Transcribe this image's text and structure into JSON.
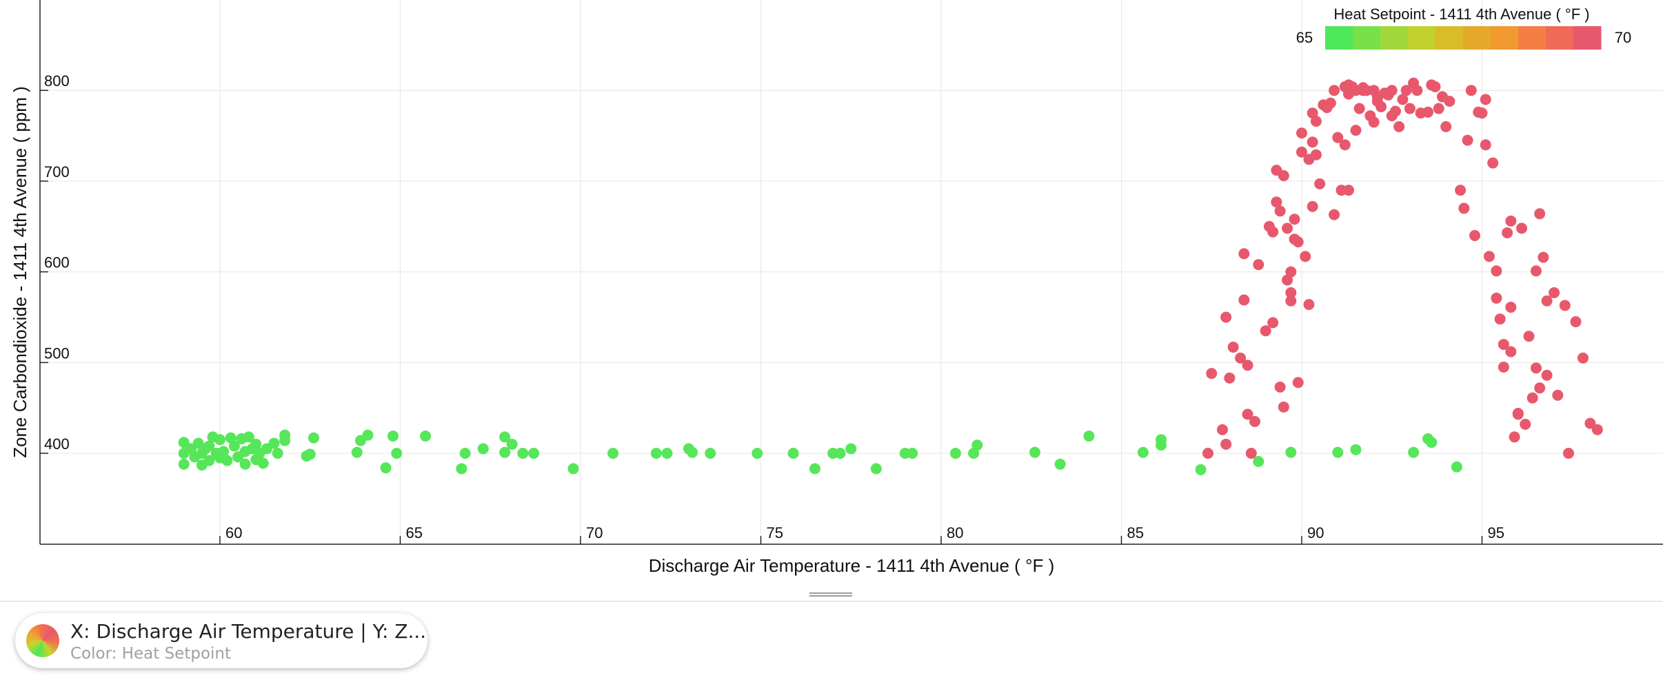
{
  "chart_data": {
    "type": "scatter",
    "title": "",
    "xlabel": "Discharge Air Temperature - 1411 4th Avenue ( °F )",
    "ylabel": "Zone Carbondioxide - 1411 4th Avenue ( ppm )",
    "xlim": [
      55,
      99
    ],
    "ylim": [
      300,
      900
    ],
    "xticks": [
      60,
      65,
      70,
      75,
      80,
      85,
      90,
      95
    ],
    "yticks": [
      400,
      500,
      600,
      700,
      800
    ],
    "grid": true,
    "color_scale": {
      "title": "Heat Setpoint - 1411 4th Avenue ( °F )",
      "min": 65,
      "max": 70,
      "min_label": "65",
      "max_label": "70",
      "placement": "top-right",
      "colors": [
        "#4ee85a",
        "#78e048",
        "#a0d83a",
        "#c2d030",
        "#dabb28",
        "#e6a82a",
        "#f09a30",
        "#f57e45",
        "#f06a58",
        "#e8586c"
      ]
    },
    "series": [
      {
        "setpoint": 65,
        "color": "#56e65a",
        "points": [
          [
            59.0,
            412
          ],
          [
            59.0,
            400
          ],
          [
            59.0,
            388
          ],
          [
            59.2,
            405
          ],
          [
            59.3,
            396
          ],
          [
            59.4,
            411
          ],
          [
            59.5,
            387
          ],
          [
            59.5,
            400
          ],
          [
            59.6,
            405
          ],
          [
            59.7,
            392
          ],
          [
            59.7,
            408
          ],
          [
            59.8,
            418
          ],
          [
            59.9,
            400
          ],
          [
            60.0,
            395
          ],
          [
            60.0,
            415
          ],
          [
            60.1,
            402
          ],
          [
            60.2,
            392
          ],
          [
            60.3,
            417
          ],
          [
            60.4,
            408
          ],
          [
            60.5,
            396
          ],
          [
            60.6,
            416
          ],
          [
            60.7,
            402
          ],
          [
            60.7,
            388
          ],
          [
            60.8,
            418
          ],
          [
            60.9,
            405
          ],
          [
            61.0,
            393
          ],
          [
            61.0,
            410
          ],
          [
            61.1,
            400
          ],
          [
            61.2,
            389
          ],
          [
            61.3,
            405
          ],
          [
            61.5,
            411
          ],
          [
            61.6,
            400
          ],
          [
            61.8,
            414
          ],
          [
            61.8,
            420
          ],
          [
            62.4,
            397
          ],
          [
            62.5,
            399
          ],
          [
            62.6,
            417
          ],
          [
            63.8,
            401
          ],
          [
            63.9,
            414
          ],
          [
            64.1,
            420
          ],
          [
            64.6,
            384
          ],
          [
            64.8,
            419
          ],
          [
            64.9,
            400
          ],
          [
            65.7,
            419
          ],
          [
            66.7,
            383
          ],
          [
            66.8,
            400
          ],
          [
            67.3,
            405
          ],
          [
            67.9,
            418
          ],
          [
            67.9,
            401
          ],
          [
            68.1,
            410
          ],
          [
            68.4,
            400
          ],
          [
            68.7,
            400
          ],
          [
            69.8,
            383
          ],
          [
            70.9,
            400
          ],
          [
            72.1,
            400
          ],
          [
            72.4,
            400
          ],
          [
            73.0,
            405
          ],
          [
            73.1,
            401
          ],
          [
            73.6,
            400
          ],
          [
            74.9,
            400
          ],
          [
            75.9,
            400
          ],
          [
            76.5,
            383
          ],
          [
            77.0,
            400
          ],
          [
            77.2,
            400
          ],
          [
            77.5,
            405
          ],
          [
            78.2,
            383
          ],
          [
            79.0,
            400
          ],
          [
            79.2,
            400
          ],
          [
            80.4,
            400
          ],
          [
            80.9,
            400
          ],
          [
            81.0,
            409
          ],
          [
            82.6,
            401
          ],
          [
            83.3,
            388
          ],
          [
            84.1,
            419
          ],
          [
            85.6,
            401
          ],
          [
            86.1,
            409
          ],
          [
            86.1,
            415
          ],
          [
            87.2,
            382
          ],
          [
            88.8,
            391
          ],
          [
            89.7,
            401
          ],
          [
            91.0,
            401
          ],
          [
            91.5,
            404
          ],
          [
            93.1,
            401
          ],
          [
            93.5,
            416
          ],
          [
            93.6,
            412
          ],
          [
            94.3,
            385
          ]
        ]
      },
      {
        "setpoint": 70,
        "color": "#e8586c",
        "points": [
          [
            87.4,
            400
          ],
          [
            87.5,
            488
          ],
          [
            87.8,
            426
          ],
          [
            87.9,
            410
          ],
          [
            87.9,
            550
          ],
          [
            88.0,
            483
          ],
          [
            88.1,
            517
          ],
          [
            88.3,
            505
          ],
          [
            88.4,
            569
          ],
          [
            88.4,
            620
          ],
          [
            88.5,
            497
          ],
          [
            88.5,
            443
          ],
          [
            88.6,
            400
          ],
          [
            88.7,
            435
          ],
          [
            88.8,
            608
          ],
          [
            89.0,
            535
          ],
          [
            89.1,
            650
          ],
          [
            89.2,
            644
          ],
          [
            89.2,
            544
          ],
          [
            89.3,
            677
          ],
          [
            89.3,
            712
          ],
          [
            89.4,
            473
          ],
          [
            89.4,
            667
          ],
          [
            89.5,
            706
          ],
          [
            89.5,
            451
          ],
          [
            89.6,
            591
          ],
          [
            89.6,
            648
          ],
          [
            89.7,
            577
          ],
          [
            89.7,
            568
          ],
          [
            89.7,
            600
          ],
          [
            89.8,
            636
          ],
          [
            89.8,
            658
          ],
          [
            89.9,
            633
          ],
          [
            89.9,
            478
          ],
          [
            90.0,
            753
          ],
          [
            90.0,
            732
          ],
          [
            90.1,
            617
          ],
          [
            90.2,
            564
          ],
          [
            90.2,
            724
          ],
          [
            90.3,
            672
          ],
          [
            90.3,
            743
          ],
          [
            90.3,
            775
          ],
          [
            90.4,
            729
          ],
          [
            90.4,
            766
          ],
          [
            90.5,
            697
          ],
          [
            90.6,
            784
          ],
          [
            90.7,
            781
          ],
          [
            90.8,
            786
          ],
          [
            90.9,
            800
          ],
          [
            90.9,
            663
          ],
          [
            91.0,
            748
          ],
          [
            91.1,
            690
          ],
          [
            91.2,
            804
          ],
          [
            91.2,
            740
          ],
          [
            91.3,
            796
          ],
          [
            91.3,
            806
          ],
          [
            91.3,
            690
          ],
          [
            91.4,
            804
          ],
          [
            91.5,
            756
          ],
          [
            91.5,
            800
          ],
          [
            91.6,
            780
          ],
          [
            91.7,
            803
          ],
          [
            91.7,
            800
          ],
          [
            91.8,
            800
          ],
          [
            91.9,
            772
          ],
          [
            92.0,
            765
          ],
          [
            92.0,
            800
          ],
          [
            92.1,
            793
          ],
          [
            92.1,
            788
          ],
          [
            92.2,
            782
          ],
          [
            92.3,
            797
          ],
          [
            92.4,
            795
          ],
          [
            92.5,
            800
          ],
          [
            92.5,
            772
          ],
          [
            92.6,
            777
          ],
          [
            92.7,
            760
          ],
          [
            92.8,
            790
          ],
          [
            92.9,
            800
          ],
          [
            93.0,
            780
          ],
          [
            93.1,
            808
          ],
          [
            93.2,
            800
          ],
          [
            93.3,
            775
          ],
          [
            93.5,
            776
          ],
          [
            93.6,
            806
          ],
          [
            93.7,
            804
          ],
          [
            93.8,
            780
          ],
          [
            93.9,
            793
          ],
          [
            94.0,
            760
          ],
          [
            94.1,
            788
          ],
          [
            94.4,
            690
          ],
          [
            94.5,
            670
          ],
          [
            94.6,
            745
          ],
          [
            94.7,
            800
          ],
          [
            94.8,
            640
          ],
          [
            94.9,
            776
          ],
          [
            95.0,
            775
          ],
          [
            95.1,
            790
          ],
          [
            95.1,
            740
          ],
          [
            95.2,
            617
          ],
          [
            95.3,
            720
          ],
          [
            95.4,
            601
          ],
          [
            95.4,
            571
          ],
          [
            95.5,
            548
          ],
          [
            95.6,
            520
          ],
          [
            95.6,
            495
          ],
          [
            95.7,
            643
          ],
          [
            95.8,
            656
          ],
          [
            95.8,
            561
          ],
          [
            95.8,
            512
          ],
          [
            95.9,
            418
          ],
          [
            96.0,
            444
          ],
          [
            96.0,
            443
          ],
          [
            96.1,
            648
          ],
          [
            96.2,
            432
          ],
          [
            96.3,
            529
          ],
          [
            96.4,
            461
          ],
          [
            96.5,
            601
          ],
          [
            96.5,
            494
          ],
          [
            96.6,
            664
          ],
          [
            96.6,
            472
          ],
          [
            96.7,
            616
          ],
          [
            96.8,
            486
          ],
          [
            96.8,
            568
          ],
          [
            97.0,
            577
          ],
          [
            97.1,
            464
          ],
          [
            97.3,
            563
          ],
          [
            97.4,
            400
          ],
          [
            97.6,
            545
          ],
          [
            97.8,
            505
          ],
          [
            98.0,
            433
          ],
          [
            98.2,
            426
          ]
        ]
      }
    ]
  },
  "legend_card": {
    "title": "X: Discharge Air Temperature | Y: Z...",
    "subtitle": "Color: Heat Setpoint"
  }
}
